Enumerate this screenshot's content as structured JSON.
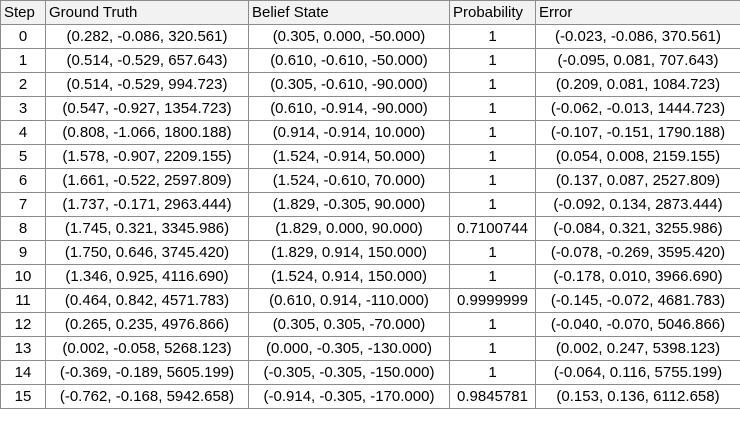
{
  "table": {
    "headers": [
      "Step",
      "Ground Truth",
      "Belief State",
      "Probability",
      "Error"
    ],
    "rows": [
      [
        "0",
        "(0.282, -0.086, 320.561)",
        "(0.305, 0.000, -50.000)",
        "1",
        "(-0.023, -0.086, 370.561)"
      ],
      [
        "1",
        "(0.514, -0.529, 657.643)",
        "(0.610, -0.610, -50.000)",
        "1",
        "(-0.095, 0.081, 707.643)"
      ],
      [
        "2",
        "(0.514, -0.529, 994.723)",
        "(0.305, -0.610, -90.000)",
        "1",
        "(0.209, 0.081, 1084.723)"
      ],
      [
        "3",
        "(0.547, -0.927, 1354.723)",
        "(0.610, -0.914, -90.000)",
        "1",
        "(-0.062, -0.013, 1444.723)"
      ],
      [
        "4",
        "(0.808, -1.066, 1800.188)",
        "(0.914, -0.914, 10.000)",
        "1",
        "(-0.107, -0.151, 1790.188)"
      ],
      [
        "5",
        "(1.578, -0.907, 2209.155)",
        "(1.524, -0.914, 50.000)",
        "1",
        "(0.054, 0.008, 2159.155)"
      ],
      [
        "6",
        "(1.661, -0.522, 2597.809)",
        "(1.524, -0.610, 70.000)",
        "1",
        "(0.137, 0.087, 2527.809)"
      ],
      [
        "7",
        "(1.737, -0.171, 2963.444)",
        "(1.829, -0.305, 90.000)",
        "1",
        "(-0.092, 0.134, 2873.444)"
      ],
      [
        "8",
        "(1.745, 0.321, 3345.986)",
        "(1.829, 0.000, 90.000)",
        "0.7100744",
        "(-0.084, 0.321, 3255.986)"
      ],
      [
        "9",
        "(1.750, 0.646, 3745.420)",
        "(1.829, 0.914, 150.000)",
        "1",
        "(-0.078, -0.269, 3595.420)"
      ],
      [
        "10",
        "(1.346, 0.925, 4116.690)",
        "(1.524, 0.914, 150.000)",
        "1",
        "(-0.178, 0.010, 3966.690)"
      ],
      [
        "11",
        "(0.464, 0.842, 4571.783)",
        "(0.610, 0.914, -110.000)",
        "0.9999999",
        "(-0.145, -0.072, 4681.783)"
      ],
      [
        "12",
        "(0.265, 0.235, 4976.866)",
        "(0.305, 0.305, -70.000)",
        "1",
        "(-0.040, -0.070, 5046.866)"
      ],
      [
        "13",
        "(0.002, -0.058, 5268.123)",
        "(0.000, -0.305, -130.000)",
        "1",
        "(0.002, 0.247, 5398.123)"
      ],
      [
        "14",
        "(-0.369, -0.189, 5605.199)",
        "(-0.305, -0.305, -150.000)",
        "1",
        "(-0.064, 0.116, 5755.199)"
      ],
      [
        "15",
        "(-0.762, -0.168, 5942.658)",
        "(-0.914, -0.305, -170.000)",
        "0.9845781",
        "(0.153, 0.136, 6112.658)"
      ]
    ]
  },
  "colors": {
    "header_bg": "#f2f2f2",
    "border": "#8c8c8c",
    "text": "#000000"
  }
}
